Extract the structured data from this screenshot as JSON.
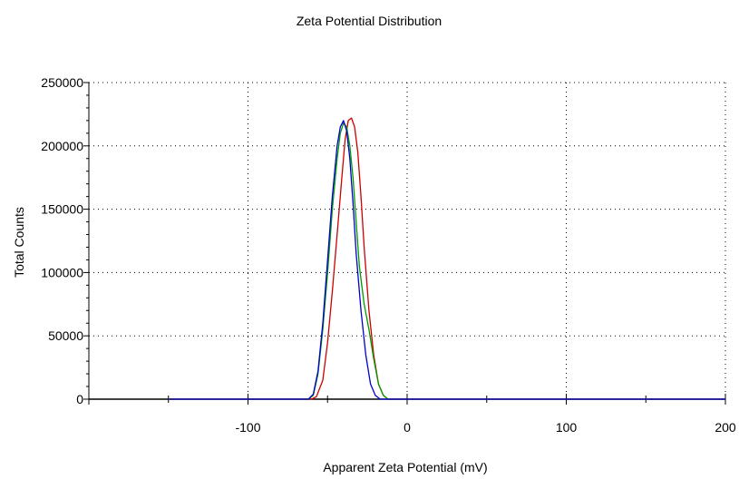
{
  "chart_data": {
    "type": "line",
    "title": "Zeta Potential Distribution",
    "xlabel": "Apparent Zeta Potential (mV)",
    "ylabel": "Total Counts",
    "xlim": [
      -200,
      200
    ],
    "ylim": [
      0,
      250000
    ],
    "xticks": [
      -100,
      0,
      100,
      200
    ],
    "xtick_labels": [
      "-100",
      "0",
      "100",
      "200"
    ],
    "yticks": [
      0,
      50000,
      100000,
      150000,
      200000,
      250000
    ],
    "ytick_labels": [
      "0",
      "50000",
      "100000",
      "150000",
      "200000",
      "250000"
    ],
    "grid": true,
    "series": [
      {
        "color": "#cc0000",
        "x": [
          -150,
          -60,
          -57,
          -53,
          -50,
          -47,
          -44,
          -41,
          -39,
          -37,
          -35,
          -33,
          -31,
          -29,
          -27,
          -24,
          -21,
          -18,
          -15,
          -12,
          200
        ],
        "y": [
          0,
          0,
          2000,
          15000,
          45000,
          85000,
          130000,
          175000,
          205000,
          220000,
          222000,
          215000,
          195000,
          160000,
          120000,
          70000,
          35000,
          12000,
          3000,
          0,
          0
        ]
      },
      {
        "color": "#009900",
        "x": [
          -150,
          -62,
          -59,
          -56,
          -53,
          -50,
          -47,
          -44,
          -42,
          -40,
          -38,
          -36,
          -34,
          -32,
          -30,
          -27,
          -24,
          -21,
          -18,
          -15,
          -12,
          200
        ],
        "y": [
          0,
          0,
          3000,
          20000,
          55000,
          100000,
          150000,
          190000,
          210000,
          218000,
          215000,
          200000,
          175000,
          140000,
          105000,
          75000,
          55000,
          32000,
          12000,
          3000,
          0,
          0
        ]
      },
      {
        "color": "#0000cc",
        "x": [
          -150,
          -62,
          -59,
          -56,
          -53,
          -50,
          -47,
          -44,
          -42,
          -40,
          -38,
          -36,
          -34,
          -32,
          -29,
          -26,
          -23,
          -20,
          -17,
          200
        ],
        "y": [
          0,
          0,
          4000,
          22000,
          60000,
          110000,
          160000,
          200000,
          215000,
          220000,
          212000,
          190000,
          155000,
          115000,
          70000,
          35000,
          12000,
          3000,
          0,
          0
        ]
      }
    ]
  }
}
